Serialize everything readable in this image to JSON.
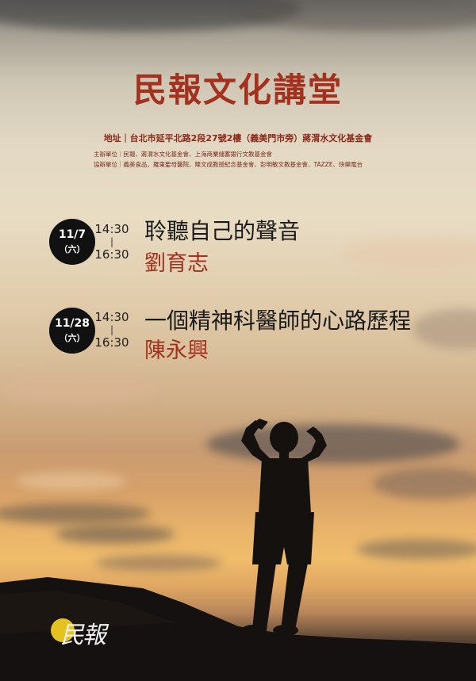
{
  "poster": {
    "title": "民報文化講堂",
    "address": "地址｜台北市延平北路2段27號2樓（義美門市旁）蔣渭水文化基金會",
    "organizers": "主辦單位｜民報、蔣渭水文化基金會、上海商業儲蓄銀行文教基金會",
    "co_organizers": "協辦單位｜義美食品、羅東聖母醫院、陳文成教授紀念基金會、彭明敏文教基金會、TAZZE、快樂電台",
    "events": [
      {
        "date": "11/7",
        "weekday": "（六）",
        "start_time": "14:30",
        "separator": "|",
        "end_time": "16:30",
        "topic": "聆聽自己的聲音",
        "speaker": "劉育志"
      },
      {
        "date": "11/28",
        "weekday": "（六）",
        "start_time": "14:30",
        "separator": "|",
        "end_time": "16:30",
        "topic": "一個精神科醫師的心路歷程",
        "speaker": "陳永興"
      }
    ],
    "logo_text": "民報"
  },
  "colors": {
    "title": "#a2311f",
    "badge": "#111111",
    "logo_accent": "#e6c21e"
  }
}
